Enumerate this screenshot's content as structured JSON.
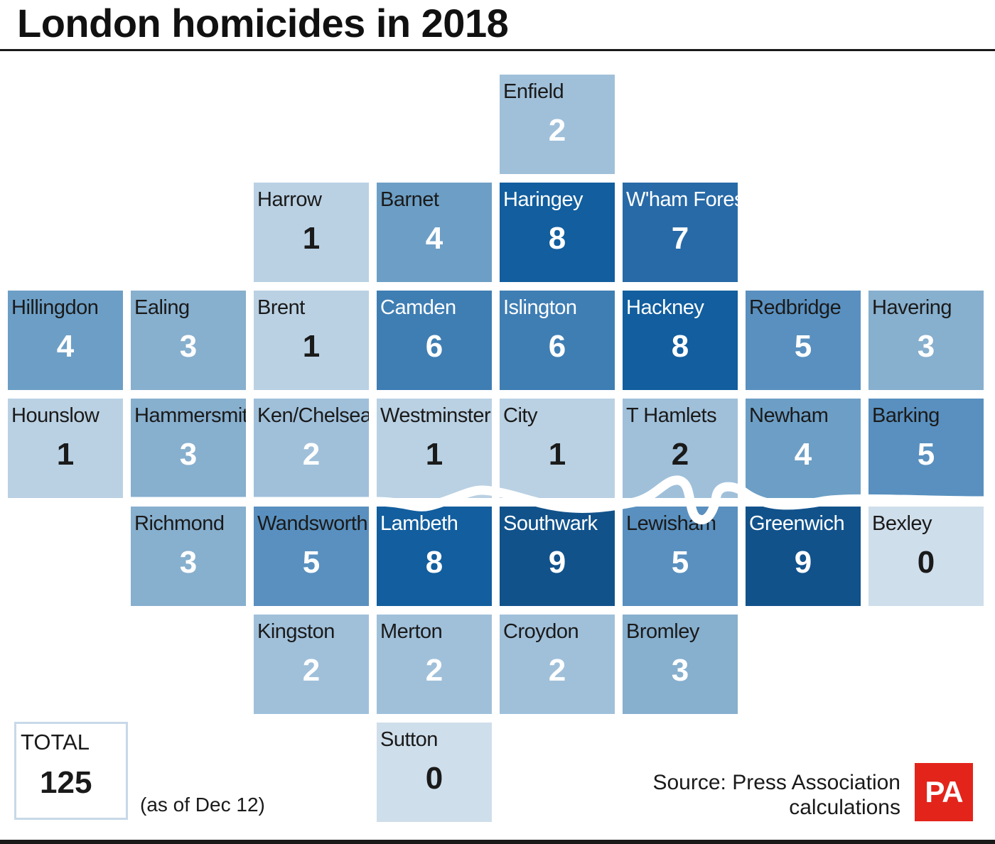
{
  "title": "London homicides in 2018",
  "chart_data": {
    "type": "heatmap",
    "title": "London homicides in 2018",
    "subtitle": "",
    "color_scale": {
      "0": "#cfdeeb",
      "1": "#bad1e3",
      "2": "#a0c0da",
      "3": "#87afce",
      "4": "#6d9fc6",
      "5": "#5990bf",
      "6": "#3f7eb3",
      "7": "#286aa7",
      "8": "#125e9e",
      "9": "#11528b"
    },
    "cells": [
      {
        "name": "Enfield",
        "value": 2,
        "row": 0,
        "col": 4
      },
      {
        "name": "Harrow",
        "value": 1,
        "row": 1,
        "col": 2
      },
      {
        "name": "Barnet",
        "value": 4,
        "row": 1,
        "col": 3
      },
      {
        "name": "Haringey",
        "value": 8,
        "row": 1,
        "col": 4
      },
      {
        "name": "W'ham Forest",
        "value": 7,
        "row": 1,
        "col": 5
      },
      {
        "name": "Hillingdon",
        "value": 4,
        "row": 2,
        "col": 0
      },
      {
        "name": "Ealing",
        "value": 3,
        "row": 2,
        "col": 1
      },
      {
        "name": "Brent",
        "value": 1,
        "row": 2,
        "col": 2
      },
      {
        "name": "Camden",
        "value": 6,
        "row": 2,
        "col": 3
      },
      {
        "name": "Islington",
        "value": 6,
        "row": 2,
        "col": 4
      },
      {
        "name": "Hackney",
        "value": 8,
        "row": 2,
        "col": 5
      },
      {
        "name": "Redbridge",
        "value": 5,
        "row": 2,
        "col": 6
      },
      {
        "name": "Havering",
        "value": 3,
        "row": 2,
        "col": 7
      },
      {
        "name": "Hounslow",
        "value": 1,
        "row": 3,
        "col": 0
      },
      {
        "name": "Hammersmith",
        "value": 3,
        "row": 3,
        "col": 1
      },
      {
        "name": "Ken/Chelsea",
        "value": 2,
        "row": 3,
        "col": 2
      },
      {
        "name": "Westminster",
        "value": 1,
        "row": 3,
        "col": 3
      },
      {
        "name": "City",
        "value": 1,
        "row": 3,
        "col": 4
      },
      {
        "name": "T Hamlets",
        "value": 2,
        "row": 3,
        "col": 5
      },
      {
        "name": "Newham",
        "value": 4,
        "row": 3,
        "col": 6
      },
      {
        "name": "Barking",
        "value": 5,
        "row": 3,
        "col": 7
      },
      {
        "name": "Richmond",
        "value": 3,
        "row": 4,
        "col": 1
      },
      {
        "name": "Wandsworth",
        "value": 5,
        "row": 4,
        "col": 2
      },
      {
        "name": "Lambeth",
        "value": 8,
        "row": 4,
        "col": 3
      },
      {
        "name": "Southwark",
        "value": 9,
        "row": 4,
        "col": 4
      },
      {
        "name": "Lewisham",
        "value": 5,
        "row": 4,
        "col": 5
      },
      {
        "name": "Greenwich",
        "value": 9,
        "row": 4,
        "col": 6
      },
      {
        "name": "Bexley",
        "value": 0,
        "row": 4,
        "col": 7
      },
      {
        "name": "Kingston",
        "value": 2,
        "row": 5,
        "col": 2
      },
      {
        "name": "Merton",
        "value": 2,
        "row": 5,
        "col": 3
      },
      {
        "name": "Croydon",
        "value": 2,
        "row": 5,
        "col": 4
      },
      {
        "name": "Bromley",
        "value": 3,
        "row": 5,
        "col": 5
      },
      {
        "name": "Sutton",
        "value": 0,
        "row": 6,
        "col": 3
      }
    ]
  },
  "total": {
    "label": "TOTAL",
    "value": "125",
    "note": "(as of Dec 12)"
  },
  "source": {
    "line1": "Source: Press Association",
    "line2": "calculations"
  },
  "logo": {
    "text": "PA",
    "color": "#e3241b"
  }
}
